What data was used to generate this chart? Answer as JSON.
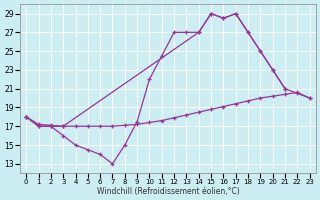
{
  "bg_color": "#cceef2",
  "grid_color": "#ffffff",
  "line_color": "#993399",
  "xlabel": "Windchill (Refroidissement éolien,°C)",
  "xlim": [
    -0.5,
    23.5
  ],
  "ylim": [
    12,
    30
  ],
  "xticks": [
    0,
    1,
    2,
    3,
    4,
    5,
    6,
    7,
    8,
    9,
    10,
    11,
    12,
    13,
    14,
    15,
    16,
    17,
    18,
    19,
    20,
    21,
    22,
    23
  ],
  "yticks": [
    13,
    15,
    17,
    19,
    21,
    23,
    25,
    27,
    29
  ],
  "line1_x": [
    0,
    1,
    2,
    3,
    4,
    5,
    6,
    7,
    8,
    9,
    10,
    11,
    12,
    13,
    14,
    15,
    16,
    17,
    18,
    19,
    20,
    21
  ],
  "line1_y": [
    18,
    17,
    17,
    16,
    15,
    14.5,
    14,
    13,
    15,
    17.5,
    22,
    24.5,
    27,
    27,
    27,
    29,
    28.5,
    29,
    27,
    25,
    23,
    21
  ],
  "line2_x": [
    0,
    1,
    2,
    3,
    4,
    5,
    6,
    7,
    8,
    9,
    10,
    11,
    12,
    13,
    14,
    15,
    16,
    17,
    18,
    19,
    20,
    21,
    22,
    23
  ],
  "line2_y": [
    18,
    17.2,
    17.1,
    17.0,
    17.0,
    17.0,
    17.0,
    17.0,
    17.1,
    17.2,
    17.4,
    17.6,
    17.9,
    18.2,
    18.5,
    18.8,
    19.1,
    19.4,
    19.7,
    20.0,
    20.2,
    20.4,
    20.6,
    20.0
  ],
  "line3_x": [
    0,
    1,
    2,
    3,
    14,
    15,
    16,
    17,
    18,
    19,
    20,
    21,
    22,
    23
  ],
  "line3_y": [
    18,
    17,
    17,
    17,
    27,
    29,
    28.5,
    29,
    27,
    25,
    23,
    21,
    20.5,
    20.0
  ]
}
